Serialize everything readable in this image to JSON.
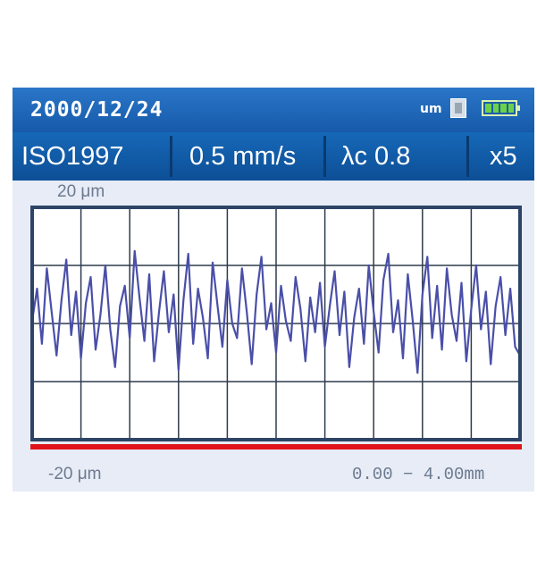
{
  "status_bar": {
    "date": "2000/12/24",
    "unit_badge": "um",
    "card_icon": "memory-card-icon",
    "battery_icon": "battery-full-icon",
    "colors": {
      "background": "#1f66b8",
      "battery_fill": "#6bd14a"
    }
  },
  "params": {
    "standard": "ISO1997",
    "speed": "0.5 mm/s",
    "cutoff": "λc  0.8",
    "magnification": "x5"
  },
  "plot": {
    "y_top_label": "20 μm",
    "y_bottom_label": "-20 μm",
    "x_range_label": "0.00 − 4.00mm",
    "colors": {
      "trace": "#4a4fa8",
      "frame": "#2d4466",
      "grid": "#2f3b4c",
      "baseline": "#e0141c",
      "background": "#ffffff"
    }
  },
  "chart_data": {
    "type": "line",
    "title": "",
    "xlabel": "",
    "ylabel": "",
    "xlim": [
      0,
      4.0
    ],
    "ylim": [
      -20,
      20
    ],
    "grid": true,
    "series": [
      {
        "x": [
          0.0,
          0.04,
          0.08,
          0.12,
          0.16,
          0.2,
          0.24,
          0.28,
          0.32,
          0.36,
          0.4,
          0.44,
          0.48,
          0.52,
          0.56,
          0.6,
          0.64,
          0.68,
          0.72,
          0.76,
          0.8,
          0.84,
          0.88,
          0.92,
          0.96,
          1.0,
          1.04,
          1.08,
          1.12,
          1.16,
          1.2,
          1.24,
          1.28,
          1.32,
          1.36,
          1.4,
          1.44,
          1.48,
          1.52,
          1.56,
          1.6,
          1.64,
          1.68,
          1.72,
          1.76,
          1.8,
          1.84,
          1.88,
          1.92,
          1.96,
          2.0,
          2.04,
          2.08,
          2.12,
          2.16,
          2.2,
          2.24,
          2.28,
          2.32,
          2.36,
          2.4,
          2.44,
          2.48,
          2.52,
          2.56,
          2.6,
          2.64,
          2.68,
          2.72,
          2.76,
          2.8,
          2.84,
          2.88,
          2.92,
          2.96,
          3.0,
          3.04,
          3.08,
          3.12,
          3.16,
          3.2,
          3.24,
          3.28,
          3.32,
          3.36,
          3.4,
          3.44,
          3.48,
          3.52,
          3.56,
          3.6,
          3.64,
          3.68,
          3.72,
          3.76,
          3.8,
          3.84,
          3.88,
          3.92,
          3.96,
          4.0
        ],
        "values": [
          0.5,
          6.0,
          -3.5,
          9.5,
          2.0,
          -5.5,
          4.0,
          11.0,
          -2.0,
          5.5,
          -6.0,
          3.5,
          8.0,
          -4.5,
          1.5,
          10.0,
          -1.0,
          -7.5,
          3.0,
          6.5,
          -2.5,
          12.5,
          4.5,
          -3.0,
          8.5,
          -6.5,
          2.0,
          9.0,
          -1.5,
          5.0,
          -8.0,
          4.0,
          12.0,
          -3.5,
          6.0,
          1.0,
          -6.0,
          10.5,
          3.0,
          -4.0,
          7.5,
          0.0,
          -2.5,
          9.5,
          2.0,
          -7.0,
          5.0,
          11.5,
          -1.0,
          3.5,
          -5.0,
          6.5,
          0.5,
          -3.0,
          8.0,
          2.5,
          -6.5,
          4.5,
          -1.5,
          7.0,
          -4.0,
          3.0,
          9.0,
          -2.0,
          5.5,
          -7.5,
          1.0,
          6.0,
          -3.5,
          10.0,
          2.0,
          -5.0,
          7.5,
          12.0,
          -1.5,
          4.0,
          -6.0,
          8.5,
          0.5,
          -8.5,
          5.0,
          11.5,
          -2.5,
          6.5,
          -4.5,
          9.5,
          1.5,
          -3.0,
          7.0,
          -6.5,
          2.5,
          10.0,
          -1.0,
          5.5,
          -7.0,
          3.0,
          8.0,
          -2.0,
          6.0,
          -4.0,
          -5.5
        ]
      }
    ]
  }
}
